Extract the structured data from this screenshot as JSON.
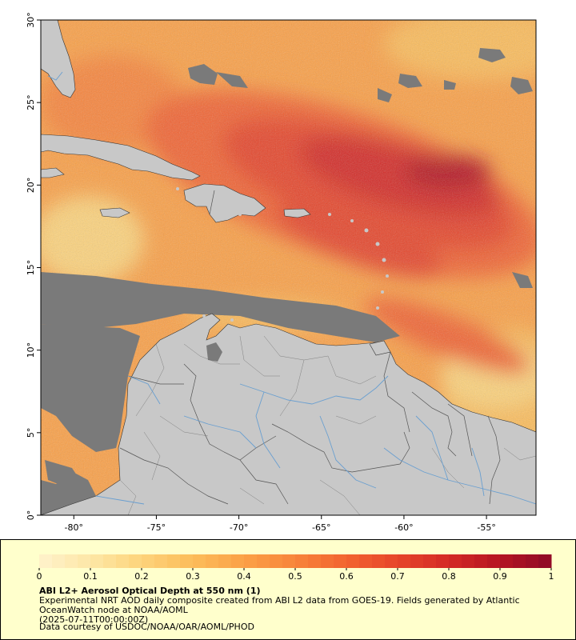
{
  "map": {
    "lon_range": [
      -82,
      -52
    ],
    "lat_range": [
      0,
      30
    ],
    "x_ticks": [
      {
        "value": -80,
        "label": "-80°"
      },
      {
        "value": -75,
        "label": "-75°"
      },
      {
        "value": -70,
        "label": "-70°"
      },
      {
        "value": -65,
        "label": "-65°"
      },
      {
        "value": -60,
        "label": "-60°"
      },
      {
        "value": -55,
        "label": "-55°"
      }
    ],
    "y_ticks": [
      {
        "value": 0,
        "label": "0°"
      },
      {
        "value": 5,
        "label": "5°"
      },
      {
        "value": 10,
        "label": "10°"
      },
      {
        "value": 15,
        "label": "15°"
      },
      {
        "value": 20,
        "label": "20°"
      },
      {
        "value": 25,
        "label": "25°"
      },
      {
        "value": 30,
        "label": "30°"
      }
    ],
    "colors": {
      "land": "#c8c8c8",
      "no_data": "#7a7a7a",
      "river": "#6a9fd0",
      "border": "#555555",
      "coast": "#333333"
    }
  },
  "legend": {
    "min": 0,
    "max": 1,
    "tick_labels": [
      "0",
      "0.1",
      "0.2",
      "0.3",
      "0.4",
      "0.5",
      "0.6",
      "0.7",
      "0.8",
      "0.9",
      "1"
    ],
    "colors": [
      "#fff2cc",
      "#fde7a6",
      "#fdd37b",
      "#fcbc5a",
      "#fba046",
      "#f8843a",
      "#f26430",
      "#e6452a",
      "#d42a25",
      "#b51422",
      "#8e0a26"
    ],
    "title": "ABI L2+ Aerosol Optical Depth at 550 nm (1)",
    "description": "Experimental NRT AOD daily composite created from ABI L2 data from GOES-19. Fields generated by Atlantic OceanWatch node at NOAA/AOML",
    "date": "(2025-07-11T00:00:00Z)",
    "credit": "Data courtesy of USDOC/NOAA/OAR/AOML/PHOD"
  }
}
